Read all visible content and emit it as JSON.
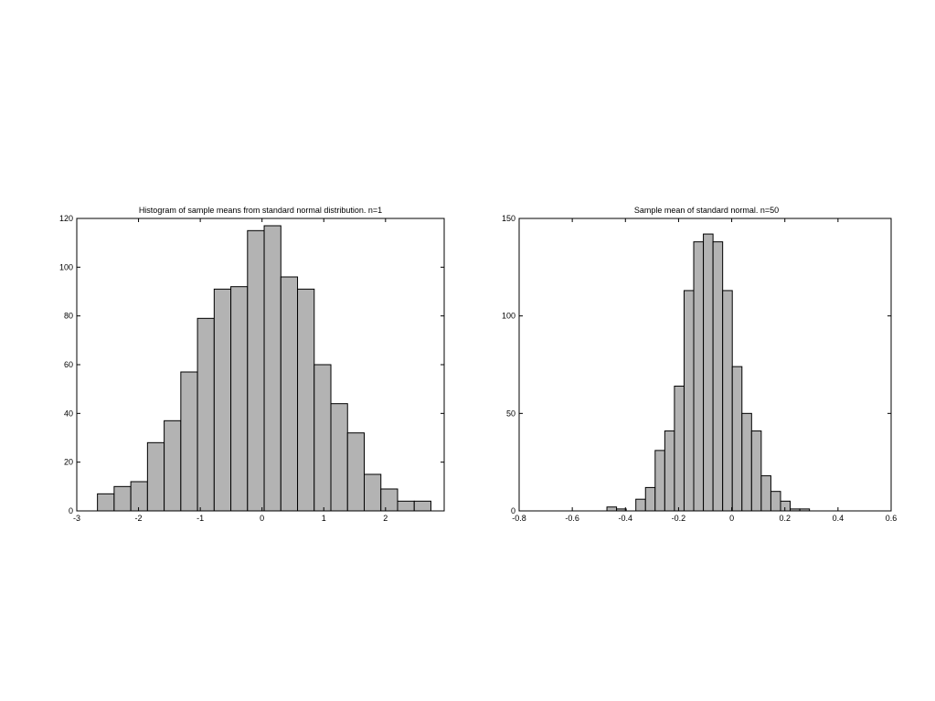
{
  "colors": {
    "bar_fill": "#b3b3b3",
    "bar_edge": "#000000",
    "axes": "#000000",
    "background": "#ffffff"
  },
  "chart_data": [
    {
      "type": "bar",
      "title": "Histogram of sample means from standard normal distribution. n=1",
      "xlabel": "",
      "ylabel": "",
      "xlim": [
        -3,
        2.95
      ],
      "ylim": [
        0,
        120
      ],
      "xticks": [
        -3,
        -2,
        -1,
        0,
        1,
        2
      ],
      "xtick_labels": [
        "-3",
        "-2",
        "-1",
        "0",
        "1",
        "2"
      ],
      "yticks": [
        0,
        20,
        40,
        60,
        80,
        100,
        120
      ],
      "ytick_labels": [
        "0",
        "20",
        "40",
        "60",
        "80",
        "100",
        "120"
      ],
      "bin_width": 0.27,
      "bin_centers": [
        -2.53,
        -2.26,
        -1.99,
        -1.72,
        -1.45,
        -1.18,
        -0.91,
        -0.64,
        -0.37,
        -0.1,
        0.17,
        0.44,
        0.71,
        0.98,
        1.25,
        1.52,
        1.79,
        2.06,
        2.33,
        2.6
      ],
      "values": [
        7,
        10,
        12,
        28,
        37,
        57,
        79,
        91,
        92,
        115,
        117,
        96,
        91,
        60,
        44,
        32,
        15,
        9,
        4,
        4
      ],
      "grid": false,
      "legend": false
    },
    {
      "type": "bar",
      "title": "Sample mean of standard normal. n=50",
      "xlabel": "",
      "ylabel": "",
      "xlim": [
        -0.8,
        0.6
      ],
      "ylim": [
        0,
        150
      ],
      "xticks": [
        -0.8,
        -0.6,
        -0.4,
        -0.2,
        0,
        0.2,
        0.4,
        0.6
      ],
      "xtick_labels": [
        "-0.8",
        "-0.6",
        "-0.4",
        "-0.2",
        "0",
        "0.2",
        "0.4",
        "0.6"
      ],
      "yticks": [
        0,
        50,
        100,
        150
      ],
      "ytick_labels": [
        "0",
        "50",
        "100",
        "150"
      ],
      "bin_width": 0.0363,
      "bin_centers": [
        -0.4515,
        -0.4152,
        -0.3789,
        -0.3426,
        -0.3063,
        -0.27,
        -0.2337,
        -0.1974,
        -0.1611,
        -0.1248,
        -0.0885,
        -0.0522,
        -0.0159,
        0.0204,
        0.0567,
        0.093,
        0.1293,
        0.1656,
        0.2019,
        0.2382,
        0.2745,
        0.3108,
        0.3471,
        0.3834,
        0.4197,
        0.456,
        0.4923
      ],
      "values": [
        2,
        1,
        0,
        6,
        12,
        31,
        41,
        64,
        113,
        138,
        142,
        138,
        113,
        74,
        50,
        41,
        18,
        10,
        5,
        1,
        1,
        0,
        0,
        0,
        0,
        0,
        0
      ],
      "grid": false,
      "legend": false
    }
  ]
}
